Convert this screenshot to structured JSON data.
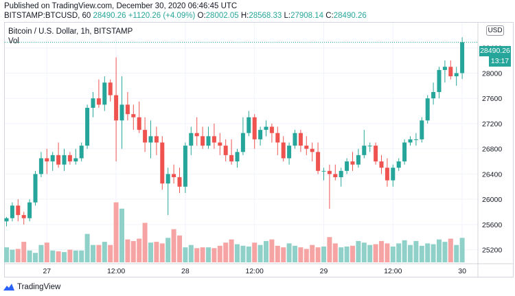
{
  "header": {
    "published": "Published on TradingView.com, December 30, 2020 06:46:45 UTC",
    "symbol_interval": "BITSTAMP:BTCUSD, 60",
    "last": "28490.26",
    "change": "+1120.26 (+4.09%)",
    "open_label": "O:",
    "open": "28002.05",
    "high_label": "H:",
    "high": "28568.33",
    "low_label": "L:",
    "low": "27908.14",
    "close_label": "C:",
    "close": "28490.26"
  },
  "legend": {
    "title": "Bitcoin / U.S. Dollar, 1h, BITSTAMP",
    "volume_label": "Vol"
  },
  "price_scale": {
    "currency": "USD",
    "current_price_label": "28490.26",
    "countdown": "13:17"
  },
  "footer": {
    "brand": "TradingView",
    "logo_icon": "tradingview-logo-icon"
  },
  "colors": {
    "up": "#26a69a",
    "down": "#ef5350",
    "volume_up": "#8fd1c9",
    "volume_down": "#f5a3a3",
    "grid": "#f0f3fa"
  },
  "chart_data": {
    "type": "candlestick",
    "symbol": "BTCUSD",
    "interval": "1h",
    "y_ticks": [
      25200,
      25600,
      26000,
      26400,
      26800,
      27200,
      27600,
      28000,
      28400
    ],
    "ylim": [
      25000,
      28800
    ],
    "x_tick_labels": [
      {
        "label": "27",
        "index": 7
      },
      {
        "label": "12:00",
        "index": 19
      },
      {
        "label": "28",
        "index": 31
      },
      {
        "label": "12:00",
        "index": 43
      },
      {
        "label": "29",
        "index": 55
      },
      {
        "label": "12:00",
        "index": 67
      },
      {
        "label": "30",
        "index": 79
      }
    ],
    "grid": true,
    "last_price": 28490.26,
    "ohlc": [
      [
        25650,
        25720,
        25570,
        25700
      ],
      [
        25700,
        25950,
        25650,
        25900
      ],
      [
        25900,
        26000,
        25650,
        25750
      ],
      [
        25750,
        25800,
        25600,
        25700
      ],
      [
        25700,
        26000,
        25650,
        25950
      ],
      [
        25950,
        26450,
        25900,
        26400
      ],
      [
        26400,
        26750,
        26350,
        26650
      ],
      [
        26650,
        26800,
        26400,
        26600
      ],
      [
        26600,
        26750,
        26450,
        26700
      ],
      [
        26700,
        26900,
        26500,
        26550
      ],
      [
        26550,
        26800,
        26450,
        26700
      ],
      [
        26700,
        26750,
        26550,
        26600
      ],
      [
        26600,
        26800,
        26550,
        26650
      ],
      [
        26650,
        26900,
        26600,
        26850
      ],
      [
        26850,
        27500,
        26800,
        27450
      ],
      [
        27450,
        27700,
        27300,
        27600
      ],
      [
        27600,
        27900,
        27450,
        27500
      ],
      [
        27500,
        27950,
        27400,
        27850
      ],
      [
        27850,
        27900,
        27550,
        27650
      ],
      [
        27650,
        28250,
        26600,
        27250
      ],
      [
        27250,
        27950,
        26800,
        27500
      ],
      [
        27500,
        27700,
        27250,
        27350
      ],
      [
        27350,
        27500,
        27100,
        27300
      ],
      [
        27300,
        27550,
        27050,
        27100
      ],
      [
        27100,
        27300,
        26750,
        26900
      ],
      [
        26900,
        27250,
        26650,
        27000
      ],
      [
        27000,
        27150,
        26700,
        26900
      ],
      [
        26900,
        27000,
        26150,
        26250
      ],
      [
        26250,
        26500,
        25750,
        26400
      ],
      [
        26400,
        26550,
        26250,
        26350
      ],
      [
        26350,
        26500,
        26100,
        26200
      ],
      [
        26200,
        26900,
        26100,
        26850
      ],
      [
        26850,
        27150,
        26700,
        27050
      ],
      [
        27050,
        27300,
        26850,
        27000
      ],
      [
        27000,
        27150,
        26800,
        26850
      ],
      [
        26850,
        27150,
        26800,
        27000
      ],
      [
        27000,
        27200,
        26800,
        26900
      ],
      [
        26900,
        27050,
        26700,
        26850
      ],
      [
        26850,
        26950,
        26600,
        26700
      ],
      [
        26700,
        26950,
        26550,
        26600
      ],
      [
        26600,
        26800,
        26500,
        26750
      ],
      [
        26750,
        27300,
        26700,
        27050
      ],
      [
        27050,
        27400,
        27000,
        27300
      ],
      [
        27300,
        27350,
        26800,
        26950
      ],
      [
        26950,
        27150,
        26850,
        27100
      ],
      [
        27100,
        27250,
        27000,
        27150
      ],
      [
        27150,
        27200,
        26900,
        27050
      ],
      [
        27050,
        27150,
        26700,
        26900
      ],
      [
        26900,
        27000,
        26600,
        26650
      ],
      [
        26650,
        26900,
        26550,
        26850
      ],
      [
        26850,
        27100,
        26800,
        27050
      ],
      [
        27050,
        27100,
        26750,
        26850
      ],
      [
        26850,
        27000,
        26700,
        26800
      ],
      [
        26800,
        26900,
        26600,
        26750
      ],
      [
        26750,
        26900,
        26400,
        26450
      ],
      [
        26450,
        26500,
        26300,
        26450
      ],
      [
        26450,
        26550,
        25850,
        26400
      ],
      [
        26400,
        26550,
        26300,
        26350
      ],
      [
        26350,
        26500,
        26200,
        26450
      ],
      [
        26450,
        26650,
        26400,
        26600
      ],
      [
        26600,
        26750,
        26450,
        26550
      ],
      [
        26550,
        26800,
        26500,
        26700
      ],
      [
        26700,
        27100,
        26650,
        26850
      ],
      [
        26850,
        26900,
        26750,
        26850
      ],
      [
        26850,
        26900,
        26550,
        26600
      ],
      [
        26600,
        26700,
        26400,
        26500
      ],
      [
        26500,
        26650,
        26200,
        26300
      ],
      [
        26300,
        26550,
        26200,
        26500
      ],
      [
        26500,
        26650,
        26450,
        26600
      ],
      [
        26600,
        26950,
        26550,
        26900
      ],
      [
        26900,
        27000,
        26850,
        26950
      ],
      [
        26950,
        27050,
        26850,
        26950
      ],
      [
        26950,
        27300,
        26900,
        27250
      ],
      [
        27250,
        27650,
        27200,
        27600
      ],
      [
        27600,
        27850,
        27500,
        27700
      ],
      [
        27700,
        28100,
        27600,
        28050
      ],
      [
        28050,
        28200,
        27850,
        28100
      ],
      [
        28100,
        28200,
        27900,
        27950
      ],
      [
        27950,
        28100,
        27800,
        28000
      ],
      [
        28000,
        28568,
        27908,
        28490
      ]
    ],
    "volume": [
      95,
      80,
      85,
      130,
      75,
      60,
      110,
      125,
      75,
      70,
      65,
      80,
      75,
      75,
      180,
      110,
      110,
      130,
      110,
      380,
      340,
      145,
      135,
      150,
      250,
      125,
      130,
      120,
      155,
      210,
      170,
      95,
      110,
      90,
      95,
      95,
      90,
      105,
      125,
      145,
      115,
      105,
      100,
      125,
      110,
      135,
      145,
      105,
      95,
      120,
      105,
      95,
      85,
      110,
      95,
      100,
      160,
      120,
      95,
      100,
      105,
      135,
      125,
      110,
      115,
      135,
      120,
      100,
      120,
      140,
      110,
      135,
      105,
      120,
      115,
      145,
      130,
      150,
      110,
      155
    ]
  }
}
